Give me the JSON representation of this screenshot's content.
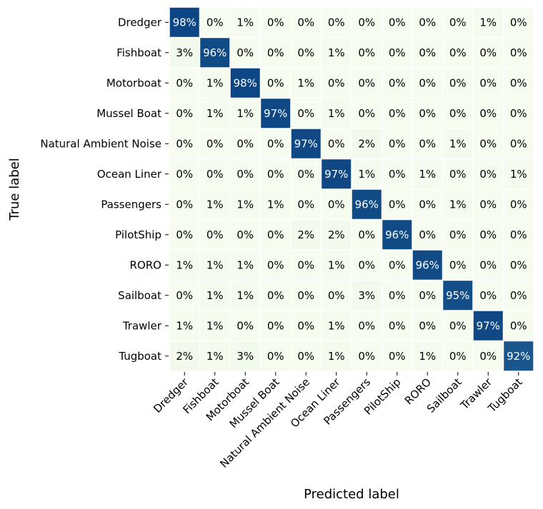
{
  "chart_data": {
    "type": "heatmap",
    "title": "",
    "xlabel": "Predicted label",
    "ylabel": "True label",
    "value_format": "percent",
    "colormap": "green-blue",
    "colors": {
      "low": "#f7fcf0",
      "mid": "#7bccc4",
      "high": "#084081",
      "text_light": "#ffffff",
      "text_dark": "#000000"
    },
    "categories": [
      "Dredger",
      "Fishboat",
      "Motorboat",
      "Mussel Boat",
      "Natural Ambient Noise",
      "Ocean Liner",
      "Passengers",
      "PilotShip",
      "RORO",
      "Sailboat",
      "Trawler",
      "Tugboat"
    ],
    "matrix": [
      [
        98,
        0,
        1,
        0,
        0,
        0,
        0,
        0,
        0,
        0,
        1,
        0
      ],
      [
        3,
        96,
        0,
        0,
        0,
        1,
        0,
        0,
        0,
        0,
        0,
        0
      ],
      [
        0,
        1,
        98,
        0,
        1,
        0,
        0,
        0,
        0,
        0,
        0,
        0
      ],
      [
        0,
        1,
        1,
        97,
        0,
        1,
        0,
        0,
        0,
        0,
        0,
        0
      ],
      [
        0,
        0,
        0,
        0,
        97,
        0,
        2,
        0,
        0,
        1,
        0,
        0
      ],
      [
        0,
        0,
        0,
        0,
        0,
        97,
        1,
        0,
        1,
        0,
        0,
        1
      ],
      [
        0,
        1,
        1,
        1,
        0,
        0,
        96,
        0,
        0,
        1,
        0,
        0
      ],
      [
        0,
        0,
        0,
        0,
        2,
        2,
        0,
        96,
        0,
        0,
        0,
        0
      ],
      [
        1,
        1,
        1,
        0,
        0,
        1,
        0,
        0,
        96,
        0,
        0,
        0
      ],
      [
        0,
        1,
        1,
        0,
        0,
        0,
        3,
        0,
        0,
        95,
        0,
        0
      ],
      [
        1,
        1,
        0,
        0,
        0,
        1,
        0,
        0,
        0,
        0,
        97,
        0
      ],
      [
        2,
        1,
        3,
        0,
        0,
        1,
        0,
        0,
        1,
        0,
        0,
        92
      ]
    ]
  }
}
